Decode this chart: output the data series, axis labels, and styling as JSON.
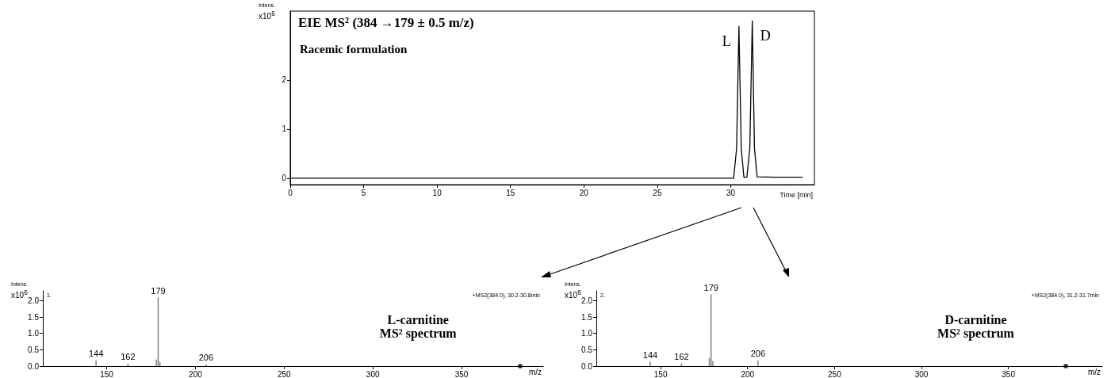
{
  "chart_data": [
    {
      "type": "line",
      "title": "EIE MS² (384 →179 ± 0.5 m/z)",
      "subtitle": "Racemic formulation",
      "xlabel": "Time [min]",
      "ylabel": "Intens.\nx10$^{6}$",
      "xlim": [
        0,
        35.7
      ],
      "ylim": [
        -0.13,
        3.4
      ],
      "xticks": [
        0,
        5,
        10,
        15,
        20,
        25,
        30
      ],
      "yticks": [
        0,
        1,
        2
      ],
      "series": [
        {
          "color": "#000000",
          "x": [
            0,
            30.2,
            30.4,
            30.56,
            30.72,
            30.9,
            31.1,
            31.3,
            31.47,
            31.62,
            31.8,
            33,
            34.9
          ],
          "values": [
            0,
            0,
            0.6,
            3.09,
            0.6,
            0.02,
            0.02,
            0.6,
            3.2,
            0.6,
            0.03,
            0.02,
            0.02
          ]
        }
      ],
      "annotations": [
        {
          "text": "L",
          "x": 30.56,
          "y": 3.09
        },
        {
          "text": "D",
          "x": 31.47,
          "y": 3.2
        }
      ]
    },
    {
      "type": "bar",
      "title": "L-carnitine",
      "subtitle": "MS² spectrum",
      "xlabel": "m/z",
      "ylabel": "Intens.\nx10$^{6}$",
      "xlim": [
        114,
        396
      ],
      "ylim": [
        0,
        2.3
      ],
      "xticks": [
        150,
        200,
        250,
        300,
        350
      ],
      "yticks": [
        {
          "value": 0,
          "label": "0.0"
        },
        {
          "value": 0.5,
          "label": "0.5"
        },
        {
          "value": 1,
          "label": "1.0"
        },
        {
          "value": 1.5,
          "label": "1.5"
        },
        {
          "value": 2,
          "label": "2.0"
        }
      ],
      "marker": "circle",
      "series": [
        {
          "color": "#808080",
          "x": [
            144,
            162,
            178,
            179,
            180,
            206
          ],
          "values": [
            0.18,
            0.08,
            0.2,
            2.1,
            0.14,
            0.06
          ]
        },
        {
          "type": "scatter",
          "color": "#000000",
          "x": [
            383
          ],
          "values": [
            0
          ]
        }
      ],
      "annotations": [
        "1.",
        "+MS2(384.0), 30.2-30.8min",
        {
          "text": "144",
          "x": 144,
          "y": 0.18
        },
        {
          "text": "162",
          "x": 162,
          "y": 0.08
        },
        {
          "text": "179",
          "x": 179,
          "y": 2.1
        },
        {
          "text": "206",
          "x": 206,
          "y": 0.06
        }
      ]
    },
    {
      "type": "bar",
      "title": "D-carnitine",
      "subtitle": "MS² spectrum",
      "xlabel": "m/z",
      "ylabel": "Intens.\nx10$^{6}$",
      "xlim": [
        113,
        404
      ],
      "ylim": [
        0,
        2.3
      ],
      "xticks": [
        150,
        200,
        250,
        300,
        350
      ],
      "yticks": [
        {
          "value": 0,
          "label": "0.0"
        },
        {
          "value": 0.5,
          "label": "0.5"
        },
        {
          "value": 1,
          "label": "1.0"
        },
        {
          "value": 1.5,
          "label": "1.5"
        },
        {
          "value": 2,
          "label": "2.0"
        }
      ],
      "marker": "circle",
      "series": [
        {
          "color": "#808080",
          "x": [
            144,
            162,
            178,
            179,
            180,
            206
          ],
          "values": [
            0.14,
            0.08,
            0.25,
            2.2,
            0.15,
            0.17
          ]
        },
        {
          "type": "scatter",
          "color": "#000000",
          "x": [
            383
          ],
          "values": [
            0
          ]
        }
      ],
      "annotations": [
        "2.",
        "+MS2(384.0), 31.2-31.7min",
        {
          "text": "144",
          "x": 144,
          "y": 0.14
        },
        {
          "text": "162",
          "x": 162,
          "y": 0.08
        },
        {
          "text": "179",
          "x": 179,
          "y": 2.2
        },
        {
          "text": "206",
          "x": 206,
          "y": 0.17
        }
      ]
    }
  ]
}
